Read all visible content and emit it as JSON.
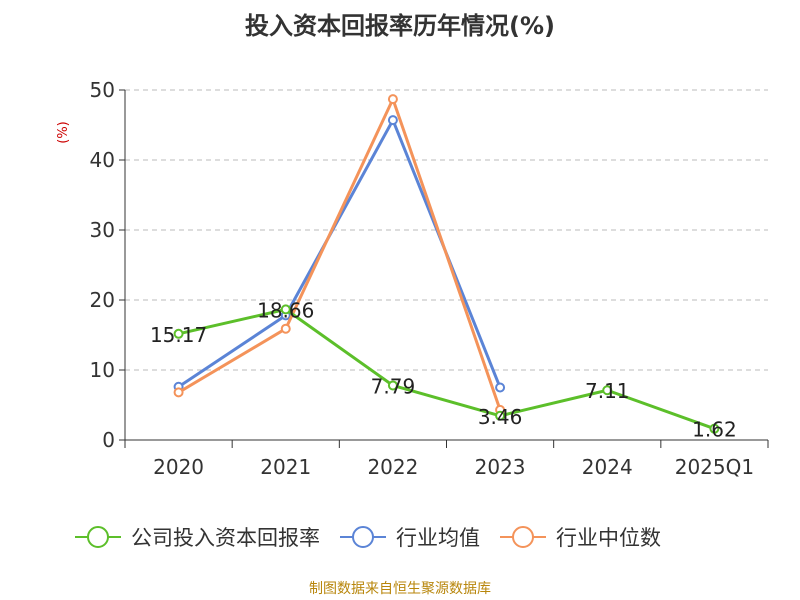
{
  "title": "投入资本回报率历年情况(%)",
  "source": "制图数据来自恒生聚源数据库",
  "chart_data": {
    "type": "line",
    "title": "投入资本回报率历年情况(%)",
    "ylabel": "(%)",
    "xlabel": "",
    "categories": [
      "2020",
      "2021",
      "2022",
      "2023",
      "2024",
      "2025Q1"
    ],
    "ylim": [
      0,
      50
    ],
    "yticks": [
      0,
      10,
      20,
      30,
      40,
      50
    ],
    "grid": "horizontal dashed",
    "legend_position": "bottom",
    "series": [
      {
        "name": "公司投入资本回报率",
        "color": "#5cbf2a",
        "values": [
          15.17,
          18.66,
          7.79,
          3.46,
          7.11,
          1.62
        ],
        "labels": [
          "15.17",
          "18.66",
          "7.79",
          "3.46",
          "7.11",
          "1.62"
        ]
      },
      {
        "name": "行业均值",
        "color": "#5b84d6",
        "values": [
          7.6,
          17.8,
          45.7,
          7.5,
          null,
          null
        ]
      },
      {
        "name": "行业中位数",
        "color": "#f4935a",
        "values": [
          6.8,
          15.9,
          48.7,
          4.3,
          null,
          null
        ]
      }
    ]
  }
}
